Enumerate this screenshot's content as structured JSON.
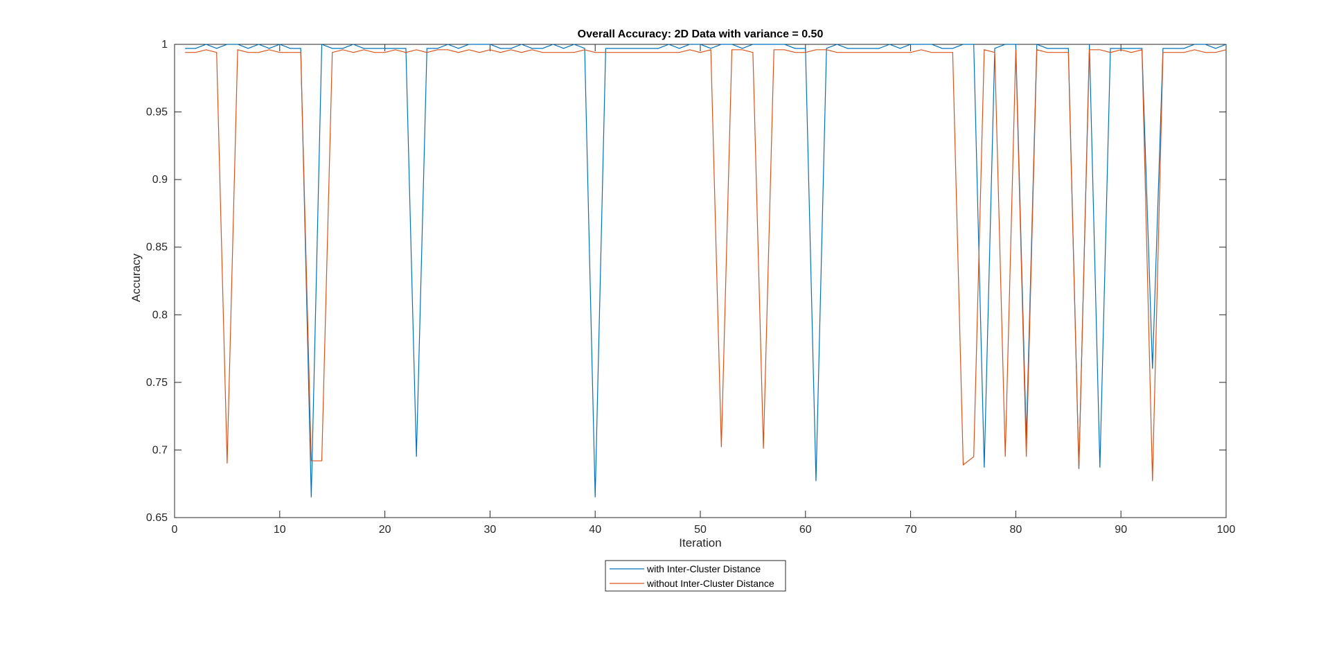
{
  "chart_data": {
    "type": "line",
    "title": "Overall Accuracy: 2D Data with variance = 0.50",
    "xlabel": "Iteration",
    "ylabel": "Accuracy",
    "xlim": [
      0,
      100
    ],
    "ylim": [
      0.65,
      1
    ],
    "xticks": [
      0,
      10,
      20,
      30,
      40,
      50,
      60,
      70,
      80,
      90,
      100
    ],
    "yticks": [
      0.65,
      0.7,
      0.75,
      0.8,
      0.85,
      0.9,
      0.95,
      1
    ],
    "grid": false,
    "legend_position": "bottom-outside",
    "x": [
      1,
      2,
      3,
      4,
      5,
      6,
      7,
      8,
      9,
      10,
      11,
      12,
      13,
      14,
      15,
      16,
      17,
      18,
      19,
      20,
      21,
      22,
      23,
      24,
      25,
      26,
      27,
      28,
      29,
      30,
      31,
      32,
      33,
      34,
      35,
      36,
      37,
      38,
      39,
      40,
      41,
      42,
      43,
      44,
      45,
      46,
      47,
      48,
      49,
      50,
      51,
      52,
      53,
      54,
      55,
      56,
      57,
      58,
      59,
      60,
      61,
      62,
      63,
      64,
      65,
      66,
      67,
      68,
      69,
      70,
      71,
      72,
      73,
      74,
      75,
      76,
      77,
      78,
      79,
      80,
      81,
      82,
      83,
      84,
      85,
      86,
      87,
      88,
      89,
      90,
      91,
      92,
      93,
      94,
      95,
      96,
      97,
      98,
      99,
      100
    ],
    "series": [
      {
        "name": "with Inter-Cluster Distance",
        "color": "#0072BD",
        "values": [
          0.997,
          0.997,
          1.0,
          0.997,
          1.0,
          1.0,
          0.997,
          1.0,
          0.997,
          1.0,
          0.997,
          0.997,
          0.665,
          1.0,
          0.997,
          0.997,
          1.0,
          0.997,
          0.997,
          0.997,
          0.997,
          0.997,
          0.695,
          0.997,
          0.997,
          1.0,
          0.997,
          1.0,
          1.0,
          1.0,
          0.997,
          0.997,
          1.0,
          0.997,
          0.997,
          1.0,
          0.997,
          1.0,
          0.997,
          0.665,
          0.997,
          0.997,
          0.997,
          0.997,
          0.997,
          0.997,
          1.0,
          0.997,
          1.0,
          1.0,
          0.997,
          1.0,
          1.0,
          0.997,
          1.0,
          1.0,
          1.0,
          1.0,
          0.997,
          0.997,
          0.677,
          0.997,
          1.0,
          0.997,
          0.997,
          0.997,
          0.997,
          1.0,
          0.997,
          1.0,
          1.0,
          1.0,
          0.997,
          0.997,
          1.0,
          1.0,
          0.687,
          0.997,
          1.0,
          1.0,
          0.708,
          1.0,
          0.997,
          0.997,
          0.997,
          0.686,
          1.0,
          0.687,
          0.997,
          0.997,
          0.997,
          0.997,
          0.76,
          0.997,
          0.997,
          0.997,
          1.0,
          1.0,
          0.997,
          1.0
        ]
      },
      {
        "name": "without Inter-Cluster Distance",
        "color": "#D95319",
        "values": [
          0.994,
          0.994,
          0.996,
          0.994,
          0.69,
          0.996,
          0.994,
          0.994,
          0.996,
          0.994,
          0.994,
          0.994,
          0.692,
          0.692,
          0.994,
          0.996,
          0.994,
          0.996,
          0.994,
          0.994,
          0.996,
          0.994,
          0.996,
          0.994,
          0.996,
          0.996,
          0.994,
          0.996,
          0.994,
          0.996,
          0.994,
          0.996,
          0.994,
          0.996,
          0.994,
          0.994,
          0.994,
          0.994,
          0.996,
          0.994,
          0.994,
          0.994,
          0.994,
          0.994,
          0.994,
          0.994,
          0.994,
          0.994,
          0.996,
          0.994,
          0.996,
          0.702,
          0.996,
          0.996,
          0.994,
          0.701,
          0.996,
          0.996,
          0.994,
          0.994,
          0.996,
          0.996,
          0.994,
          0.994,
          0.994,
          0.994,
          0.994,
          0.994,
          0.994,
          0.994,
          0.996,
          0.994,
          0.994,
          0.994,
          0.689,
          0.695,
          0.996,
          0.994,
          0.695,
          0.996,
          0.695,
          0.996,
          0.994,
          0.994,
          0.994,
          0.686,
          0.996,
          0.996,
          0.994,
          0.996,
          0.994,
          0.996,
          0.677,
          0.994,
          0.994,
          0.994,
          0.996,
          0.994,
          0.994,
          0.996
        ]
      }
    ]
  }
}
